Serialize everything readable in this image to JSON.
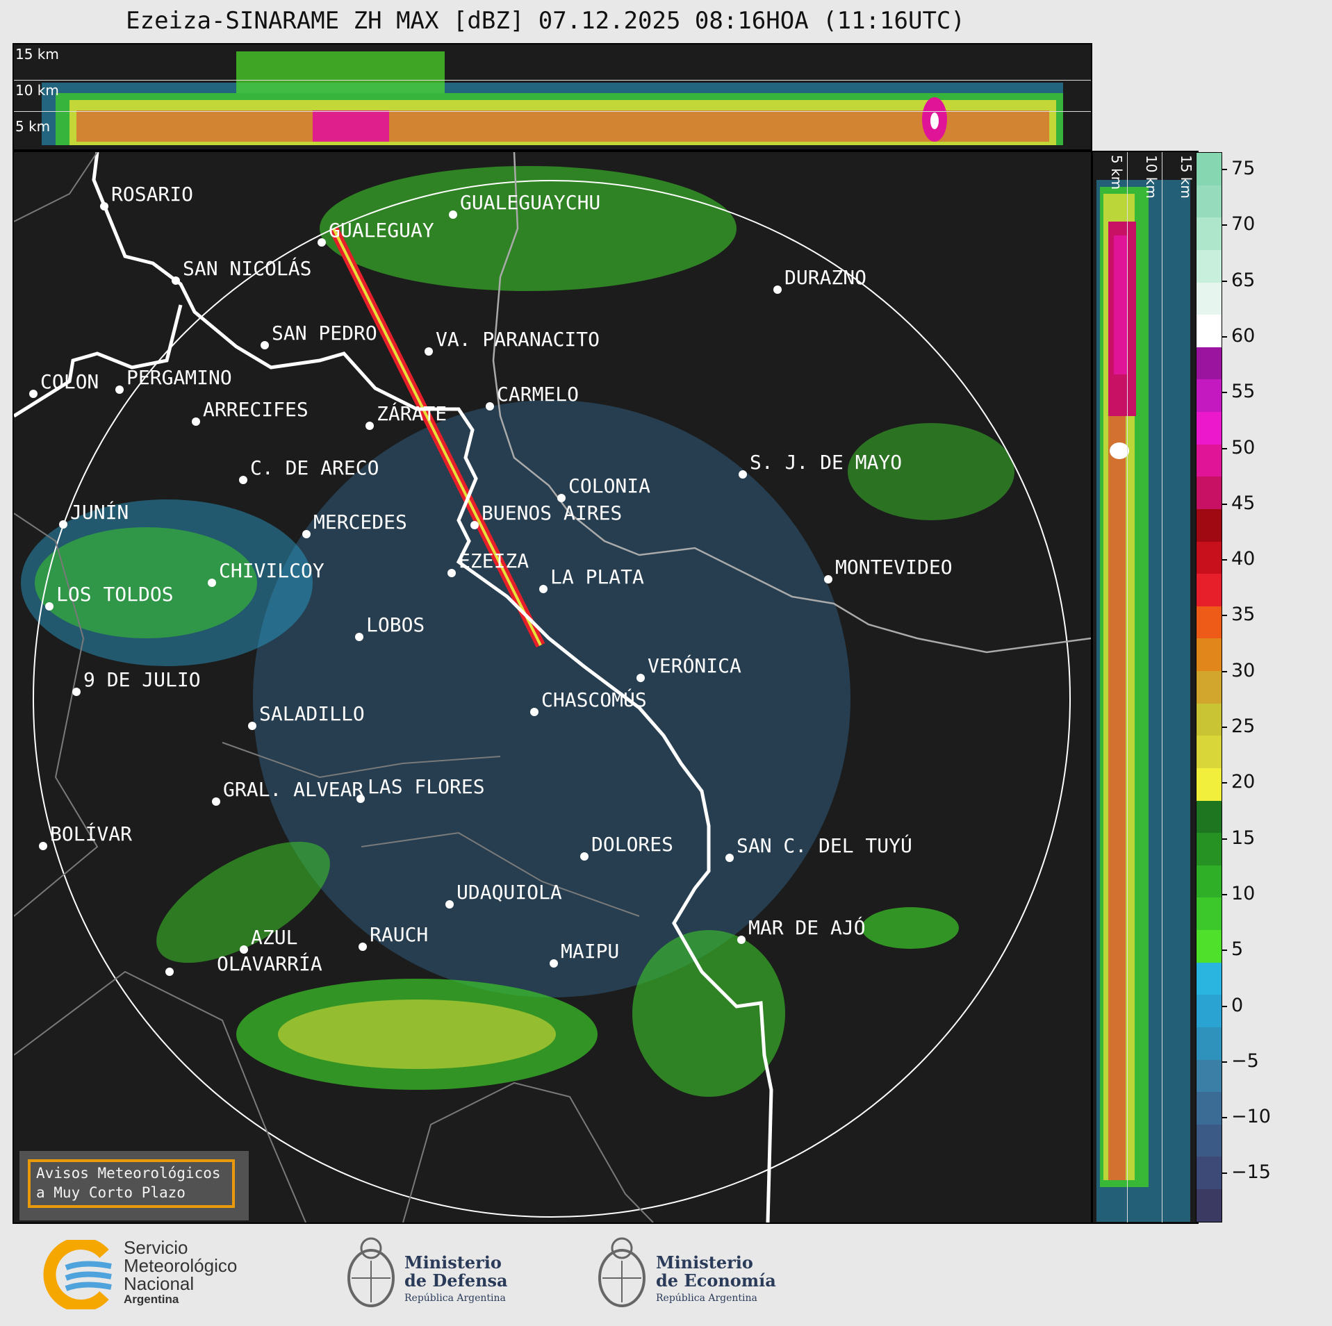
{
  "title": "Ezeiza-SINARAME ZH MAX [dBZ] 07.12.2025 08:16HOA (11:16UTC)",
  "top_panel": {
    "labels": [
      "15 km",
      "10 km",
      "5 km"
    ]
  },
  "side_panel": {
    "labels": [
      "5 km",
      "10 km",
      "15 km"
    ]
  },
  "cities": [
    {
      "name": "ROSARIO"
    },
    {
      "name": "GUALEGUAYCHU"
    },
    {
      "name": "GUALEGUAY"
    },
    {
      "name": "SAN NICOLÁS"
    },
    {
      "name": "DURAZNO"
    },
    {
      "name": "SAN PEDRO"
    },
    {
      "name": "VA. PARANACITO"
    },
    {
      "name": "COLON"
    },
    {
      "name": "PERGAMINO"
    },
    {
      "name": "ARRECIFES"
    },
    {
      "name": "CARMELO"
    },
    {
      "name": "ZÁRATE"
    },
    {
      "name": "C. DE ARECO"
    },
    {
      "name": "S. J. DE MAYO"
    },
    {
      "name": "COLONIA"
    },
    {
      "name": "JUNÍN"
    },
    {
      "name": "BUENOS AIRES"
    },
    {
      "name": "MERCEDES"
    },
    {
      "name": "EZEIZA"
    },
    {
      "name": "MONTEVIDEO"
    },
    {
      "name": "CHIVILCOY"
    },
    {
      "name": "LA PLATA"
    },
    {
      "name": "LOS TOLDOS"
    },
    {
      "name": "LOBOS"
    },
    {
      "name": "VERÓNICA"
    },
    {
      "name": "9 DE JULIO"
    },
    {
      "name": "CHASCOMÚS"
    },
    {
      "name": "SALADILLO"
    },
    {
      "name": "GRAL. ALVEAR"
    },
    {
      "name": "LAS FLORES"
    },
    {
      "name": "BOLÍVAR"
    },
    {
      "name": "DOLORES"
    },
    {
      "name": "SAN C. DEL TUYÚ"
    },
    {
      "name": "UDAQUIOLA"
    },
    {
      "name": "MAR DE AJÓ"
    },
    {
      "name": "AZUL"
    },
    {
      "name": "RAUCH"
    },
    {
      "name": "MAIPU"
    },
    {
      "name": "OLAVARRÍA"
    }
  ],
  "colorbar": {
    "ticks": [
      "75",
      "70",
      "65",
      "60",
      "55",
      "50",
      "45",
      "40",
      "35",
      "30",
      "25",
      "20",
      "15",
      "10",
      "5",
      "0",
      "−5",
      "−10",
      "−15"
    ],
    "colors": [
      "#3a3a63",
      "#3d4a78",
      "#3b5a86",
      "#3a6c95",
      "#3b7fa6",
      "#2f92bd",
      "#2aa3d2",
      "#2ab4e0",
      "#4ee02a",
      "#3cc82a",
      "#2fae28",
      "#279224",
      "#1f7620",
      "#f2ee3c",
      "#d8d638",
      "#c8c434",
      "#d2a62c",
      "#e0861a",
      "#ee5a18",
      "#e61f2a",
      "#c8101c",
      "#a00812",
      "#c81064",
      "#e01496",
      "#ec18cc",
      "#c418c0",
      "#9a14a0",
      "#ffffff",
      "#e6f6ee",
      "#c8eedc",
      "#aee6cc",
      "#96dcbc",
      "#86d6b2"
    ]
  },
  "warning": {
    "line1": "Avisos Meteorológicos",
    "line2": "a Muy Corto Plazo"
  },
  "footer": {
    "smn": {
      "line1": "Servicio",
      "line2": "Meteorológico",
      "line3": "Nacional",
      "line4": "Argentina"
    },
    "defensa": {
      "line1": "Ministerio",
      "line2": "de Defensa",
      "line3": "República Argentina"
    },
    "economia": {
      "line1": "Ministerio",
      "line2": "de Economía",
      "line3": "República Argentina"
    }
  }
}
